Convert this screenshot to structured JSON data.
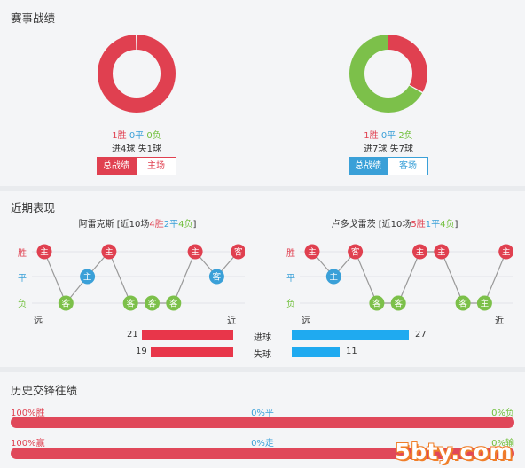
{
  "section1": {
    "title": "赛事战绩",
    "left": {
      "donut": {
        "win": 1,
        "draw": 0,
        "loss": 0
      },
      "win": "1胜",
      "draw": "0平",
      "loss": "0负",
      "goals": "进4球 失1球",
      "tab_active": "总战绩",
      "tab_inactive": "主场"
    },
    "right": {
      "donut": {
        "win": 1,
        "draw": 0,
        "loss": 2
      },
      "win": "1胜",
      "draw": "0平",
      "loss": "2负",
      "goals": "进7球 失7球",
      "tab_active": "总战绩",
      "tab_inactive": "客场"
    }
  },
  "section2": {
    "title": "近期表现",
    "left": {
      "team": "阿雷克斯",
      "prefix": " [近10场",
      "w": "4胜",
      "d": "2平",
      "l": "4负",
      "suffix": "]",
      "results": [
        {
          "r": "胜",
          "v": "主"
        },
        {
          "r": "负",
          "v": "客"
        },
        {
          "r": "平",
          "v": "主"
        },
        {
          "r": "胜",
          "v": "主"
        },
        {
          "r": "负",
          "v": "客"
        },
        {
          "r": "负",
          "v": "客"
        },
        {
          "r": "负",
          "v": "客"
        },
        {
          "r": "胜",
          "v": "主"
        },
        {
          "r": "平",
          "v": "客"
        },
        {
          "r": "胜",
          "v": "客"
        }
      ],
      "far": "远",
      "near": "近"
    },
    "right": {
      "team": "卢多戈雷茨",
      "prefix": " [近10场",
      "w": "5胜",
      "d": "1平",
      "l": "4负",
      "suffix": "]",
      "results": [
        {
          "r": "胜",
          "v": "主"
        },
        {
          "r": "平",
          "v": "主"
        },
        {
          "r": "胜",
          "v": "客"
        },
        {
          "r": "负",
          "v": "客"
        },
        {
          "r": "负",
          "v": "客"
        },
        {
          "r": "胜",
          "v": "主"
        },
        {
          "r": "胜",
          "v": "主"
        },
        {
          "r": "负",
          "v": "客"
        },
        {
          "r": "负",
          "v": "主"
        },
        {
          "r": "胜",
          "v": "主"
        }
      ],
      "far": "远",
      "near": "近"
    },
    "ylabels": {
      "win": "胜",
      "draw": "平",
      "loss": "负"
    },
    "stats": {
      "scored_label": "进球",
      "conceded_label": "失球",
      "left_scored": 21,
      "left_conceded": 19,
      "right_scored": 27,
      "right_conceded": 11
    }
  },
  "section3": {
    "title": "历史交锋往绩",
    "row1": {
      "left": "100%胜",
      "mid": "0%平",
      "right": "0%负",
      "value": 100
    },
    "row2": {
      "left": "100%赢",
      "mid": "0%走",
      "right": "0%输",
      "value": 100
    }
  },
  "watermark": "5bty.com",
  "colors": {
    "win": "#e04050",
    "draw": "#3aa0d8",
    "loss": "#7cc04a",
    "home_tab": "#e04050",
    "away_tab": "#3aa0d8"
  }
}
